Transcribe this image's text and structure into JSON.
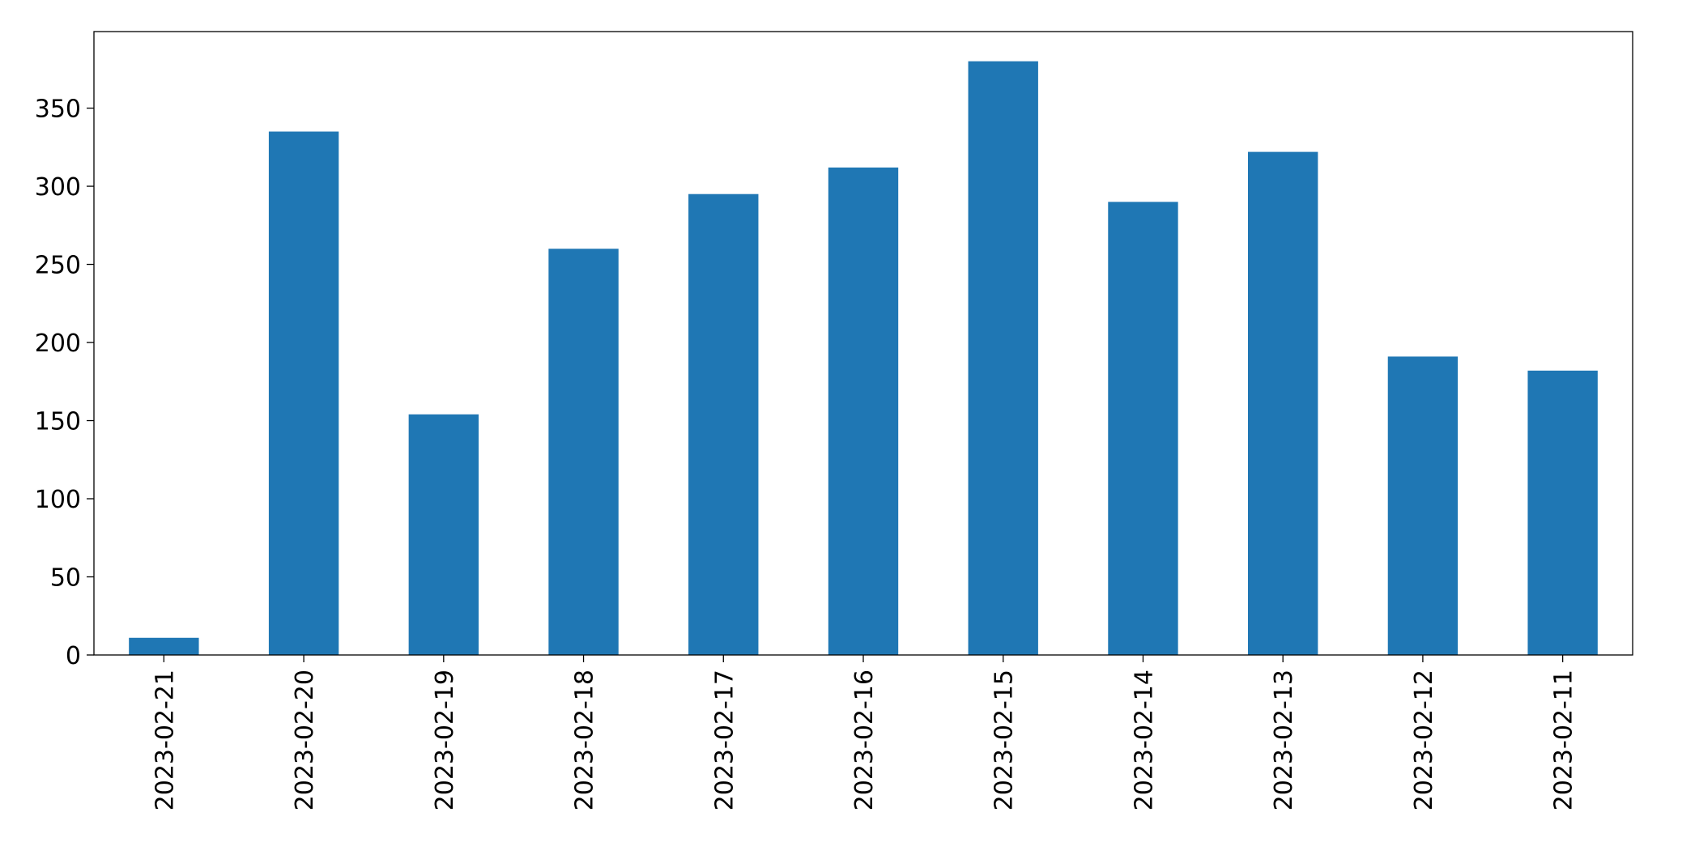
{
  "chart_data": {
    "type": "bar",
    "categories": [
      "2023-02-21",
      "2023-02-20",
      "2023-02-19",
      "2023-02-18",
      "2023-02-17",
      "2023-02-16",
      "2023-02-15",
      "2023-02-14",
      "2023-02-13",
      "2023-02-12",
      "2023-02-11"
    ],
    "values": [
      11,
      335,
      154,
      260,
      295,
      312,
      380,
      290,
      322,
      191,
      182
    ],
    "color": "#1f77b4",
    "ylim": [
      0,
      399
    ],
    "yticks": [
      0,
      50,
      100,
      150,
      200,
      250,
      300,
      350
    ],
    "grid": false
  }
}
